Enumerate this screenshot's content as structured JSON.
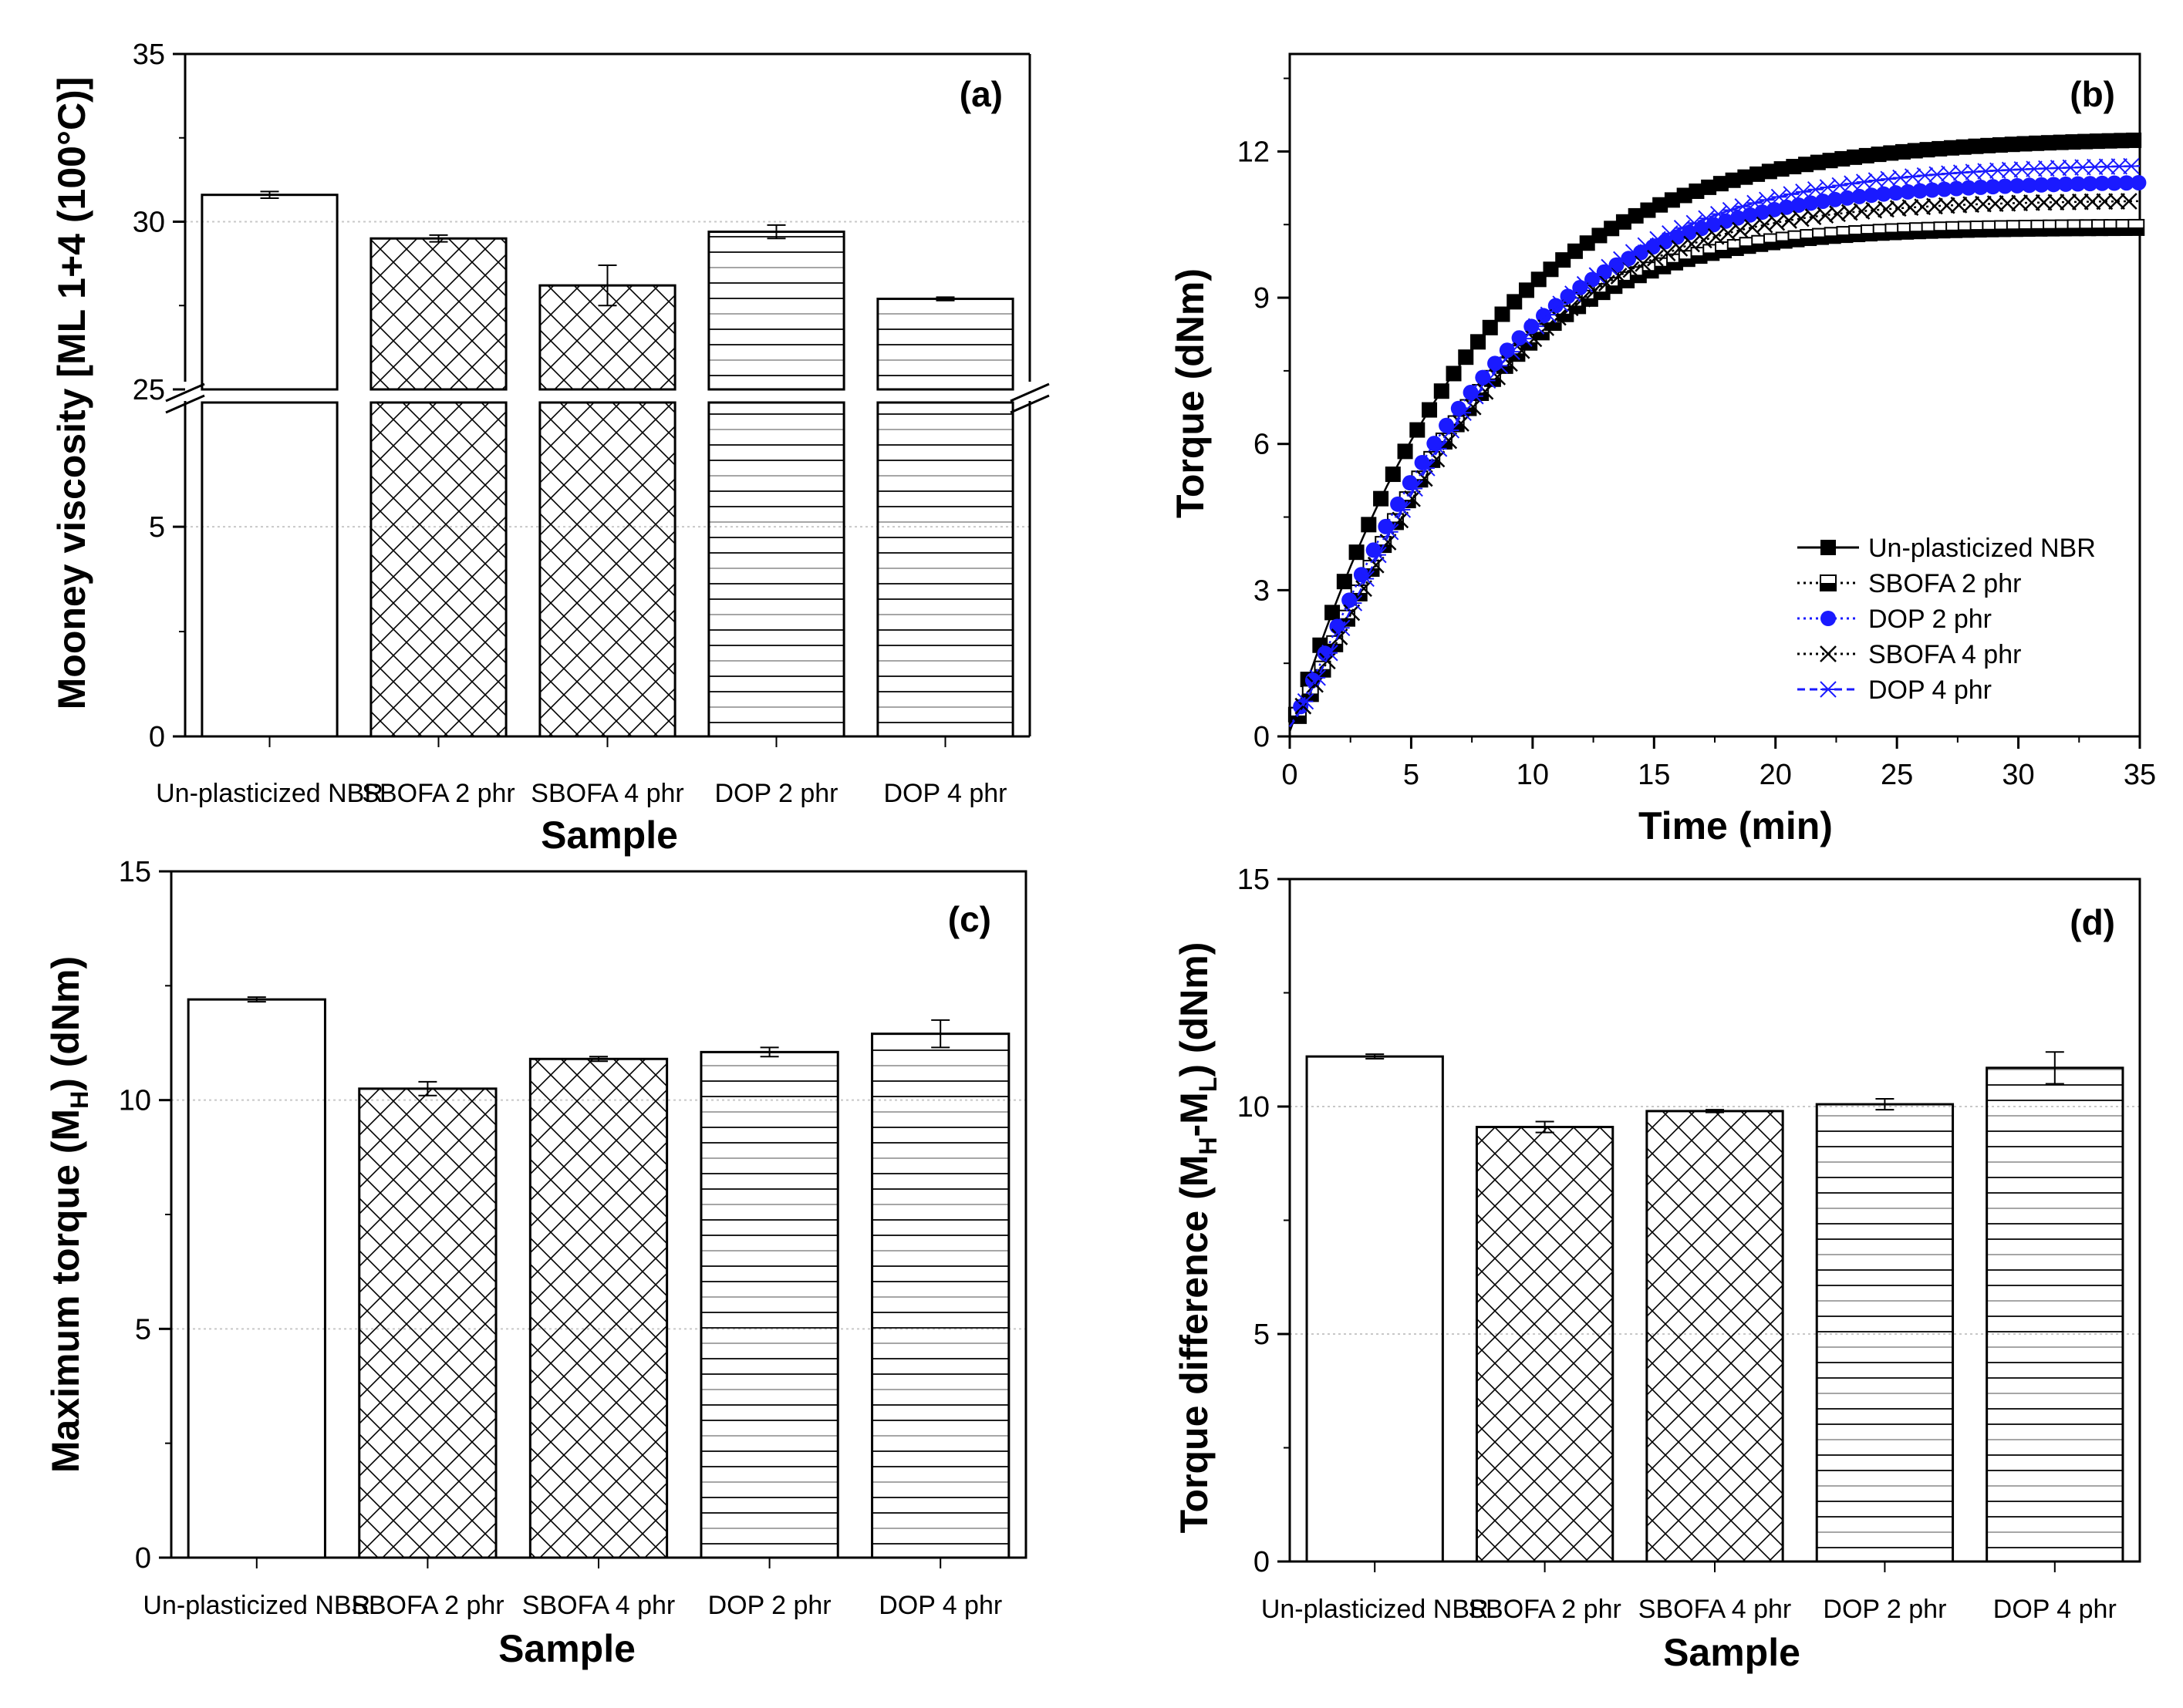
{
  "colors": {
    "axis": "#000000",
    "grid": "#c8c8c8",
    "hatch_dark": "#000000",
    "hatch_light": "#9a9a9a",
    "curve_black": "#000000",
    "curve_blue": "#1a1aff"
  },
  "chart_data": [
    {
      "id": "a",
      "type": "bar",
      "panel_label": "(a)",
      "title": "",
      "xlabel": "Sample",
      "ylabel": "Mooney viscosity [ML 1+4 (100°C)]",
      "categories": [
        "Un-plasticized NBR",
        "SBOFA 2 phr",
        "SBOFA 4 phr",
        "DOP 2 phr",
        "DOP 4 phr"
      ],
      "values": [
        30.8,
        29.5,
        28.1,
        29.7,
        27.7
      ],
      "errors": [
        0.1,
        0.1,
        0.6,
        0.2,
        0.05
      ],
      "patterns": [
        "none",
        "cross",
        "cross",
        "hlines",
        "hlines"
      ],
      "axis_break": {
        "lower": [
          0,
          8
        ],
        "upper": [
          25,
          35
        ]
      },
      "yticks_lower": [
        "0",
        "5"
      ],
      "yticks_upper": [
        "25",
        "30",
        "35"
      ],
      "grid": true
    },
    {
      "id": "b",
      "type": "line",
      "panel_label": "(b)",
      "xlabel": "Time (min)",
      "ylabel": "Torque (dNm)",
      "xlim": [
        0,
        35
      ],
      "ylim": [
        0,
        14
      ],
      "xticks": [
        "0",
        "5",
        "10",
        "15",
        "20",
        "25",
        "30",
        "35"
      ],
      "yticks": [
        "0",
        "3",
        "6",
        "9",
        "12"
      ],
      "legend_position": "bottom-right",
      "series": [
        {
          "name": "Un-plasticized NBR",
          "ML": 0.1,
          "MH": 12.3,
          "k": 0.137,
          "n": 1.05,
          "color": "#000000",
          "marker": "filled-square",
          "dash": "solid"
        },
        {
          "name": "SBOFA 2 phr",
          "ML": 0.2,
          "MH": 10.45,
          "k": 0.138,
          "n": 1.25,
          "color": "#000000",
          "marker": "half-square",
          "dash": "dotted"
        },
        {
          "name": "DOP 2 phr",
          "ML": 0.2,
          "MH": 11.4,
          "k": 0.128,
          "n": 1.15,
          "color": "#1a1aff",
          "marker": "circle",
          "dash": "dotted"
        },
        {
          "name": "SBOFA 4 phr",
          "ML": 0.25,
          "MH": 11.0,
          "k": 0.125,
          "n": 1.25,
          "color": "#000000",
          "marker": "x-cross",
          "dash": "dotted"
        },
        {
          "name": "DOP 4 phr",
          "ML": 0.2,
          "MH": 11.75,
          "k": 0.118,
          "n": 1.2,
          "color": "#1a1aff",
          "marker": "asterisk",
          "dash": "dashed"
        }
      ]
    },
    {
      "id": "c",
      "type": "bar",
      "panel_label": "(c)",
      "xlabel": "Sample",
      "ylabel_main": "Maximum torque (M",
      "ylabel_sub": "H",
      "ylabel_end": ") (dNm)",
      "categories": [
        "Un-plasticized NBR",
        "SBOFA 2 phr",
        "SBOFA 4 phr",
        "DOP 2 phr",
        "DOP 4 phr"
      ],
      "values": [
        12.2,
        10.25,
        10.9,
        11.05,
        11.45
      ],
      "errors": [
        0.05,
        0.15,
        0.05,
        0.1,
        0.3
      ],
      "patterns": [
        "none",
        "cross",
        "cross",
        "hlines",
        "hlines"
      ],
      "ylim": [
        0,
        15
      ],
      "yticks": [
        "0",
        "5",
        "10",
        "15"
      ],
      "grid": true
    },
    {
      "id": "d",
      "type": "bar",
      "panel_label": "(d)",
      "xlabel": "Sample",
      "ylabel_main": "Torque difference (M",
      "ylabel_sub1": "H",
      "ylabel_mid": "-M",
      "ylabel_sub2": "L",
      "ylabel_end": ") (dNm)",
      "categories": [
        "Un-plasticized NBR",
        "SBOFA 2 phr",
        "SBOFA 4 phr",
        "DOP 2 phr",
        "DOP 4 phr"
      ],
      "values": [
        11.1,
        9.55,
        9.9,
        10.05,
        10.85
      ],
      "errors": [
        0.05,
        0.12,
        0.03,
        0.12,
        0.35
      ],
      "patterns": [
        "none",
        "cross",
        "cross",
        "hlines",
        "hlines"
      ],
      "ylim": [
        0,
        15
      ],
      "yticks": [
        "0",
        "5",
        "10",
        "15"
      ],
      "grid": true
    }
  ]
}
